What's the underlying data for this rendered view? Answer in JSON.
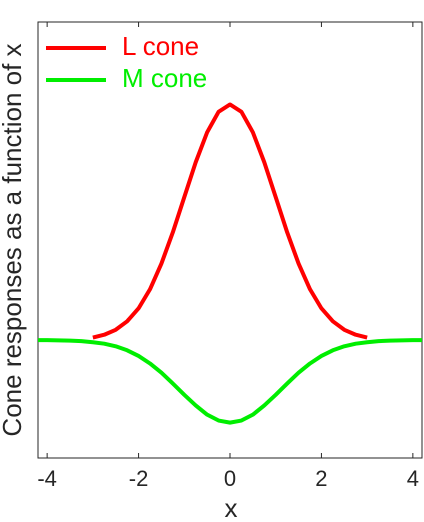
{
  "chart_data": {
    "type": "line",
    "xlabel": "x",
    "ylabel": "Cone responses as a function of x",
    "xlim": [
      -4.2,
      4.2
    ],
    "xticks": [
      -4,
      -2,
      0,
      2,
      4
    ],
    "ylim": [
      -0.5,
      1.35
    ],
    "legend": "upper left",
    "series": [
      {
        "name": "L cone",
        "color": "#ff0000",
        "x": [
          -3,
          -2.75,
          -2.5,
          -2.25,
          -2,
          -1.75,
          -1.5,
          -1.25,
          -1,
          -0.75,
          -0.5,
          -0.25,
          0,
          0.25,
          0.5,
          0.75,
          1,
          1.25,
          1.5,
          1.75,
          2,
          2.25,
          2.5,
          2.75,
          3
        ],
        "values": [
          0.011,
          0.023,
          0.044,
          0.08,
          0.135,
          0.216,
          0.325,
          0.458,
          0.607,
          0.755,
          0.882,
          0.969,
          1,
          0.969,
          0.882,
          0.755,
          0.607,
          0.458,
          0.325,
          0.216,
          0.135,
          0.08,
          0.044,
          0.023,
          0.011
        ]
      },
      {
        "name": "M cone",
        "color": "#00ee00",
        "x": [
          -4.2,
          -4,
          -3.75,
          -3.5,
          -3.25,
          -3,
          -2.75,
          -2.5,
          -2.25,
          -2,
          -1.75,
          -1.5,
          -1.25,
          -1,
          -0.75,
          -0.5,
          -0.25,
          0,
          0.25,
          0.5,
          0.75,
          1,
          1.25,
          1.5,
          1.75,
          2,
          2.25,
          2.5,
          2.75,
          3,
          3.25,
          3.5,
          3.75,
          4,
          4.2
        ],
        "values": [
          0,
          0,
          -0.001,
          -0.002,
          -0.004,
          -0.009,
          -0.015,
          -0.026,
          -0.043,
          -0.067,
          -0.099,
          -0.138,
          -0.184,
          -0.232,
          -0.277,
          -0.316,
          -0.341,
          -0.35,
          -0.341,
          -0.316,
          -0.277,
          -0.232,
          -0.184,
          -0.138,
          -0.099,
          -0.067,
          -0.043,
          -0.026,
          -0.015,
          -0.009,
          -0.004,
          -0.002,
          -0.001,
          0,
          0
        ]
      }
    ]
  }
}
